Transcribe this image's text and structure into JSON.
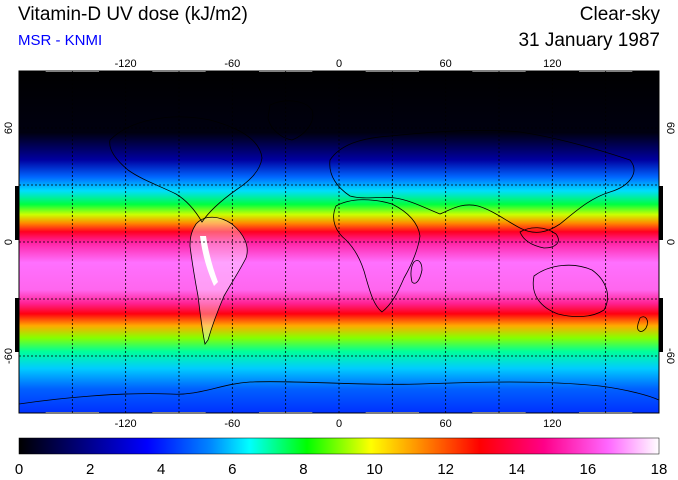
{
  "header": {
    "title": "Vitamin-D UV dose (kJ/m2)",
    "source": "MSR - KNMI",
    "condition": "Clear-sky",
    "date": "31 January 1987"
  },
  "map": {
    "longitude_ticks": [
      "-120",
      "-60",
      "0",
      "60",
      "120"
    ],
    "latitude_ticks": [
      "60",
      "0",
      "-60"
    ],
    "longitude_values": [
      -120,
      -60,
      0,
      60,
      120
    ],
    "latitude_values": [
      60,
      0,
      -60
    ],
    "lon_range": [
      -180,
      180
    ],
    "lat_range": [
      -90,
      90
    ],
    "grid": "dotted",
    "colormap": [
      "#000000",
      "#0000c8",
      "#0080ff",
      "#00ffff",
      "#00ff00",
      "#ffff00",
      "#ff8000",
      "#ff0000",
      "#ff0080",
      "#ff66ff",
      "#ffffff"
    ]
  },
  "colorbar": {
    "labels": [
      "0",
      "2",
      "4",
      "6",
      "8",
      "10",
      "12",
      "14",
      "16",
      "18"
    ],
    "min": 0,
    "max": 18
  }
}
